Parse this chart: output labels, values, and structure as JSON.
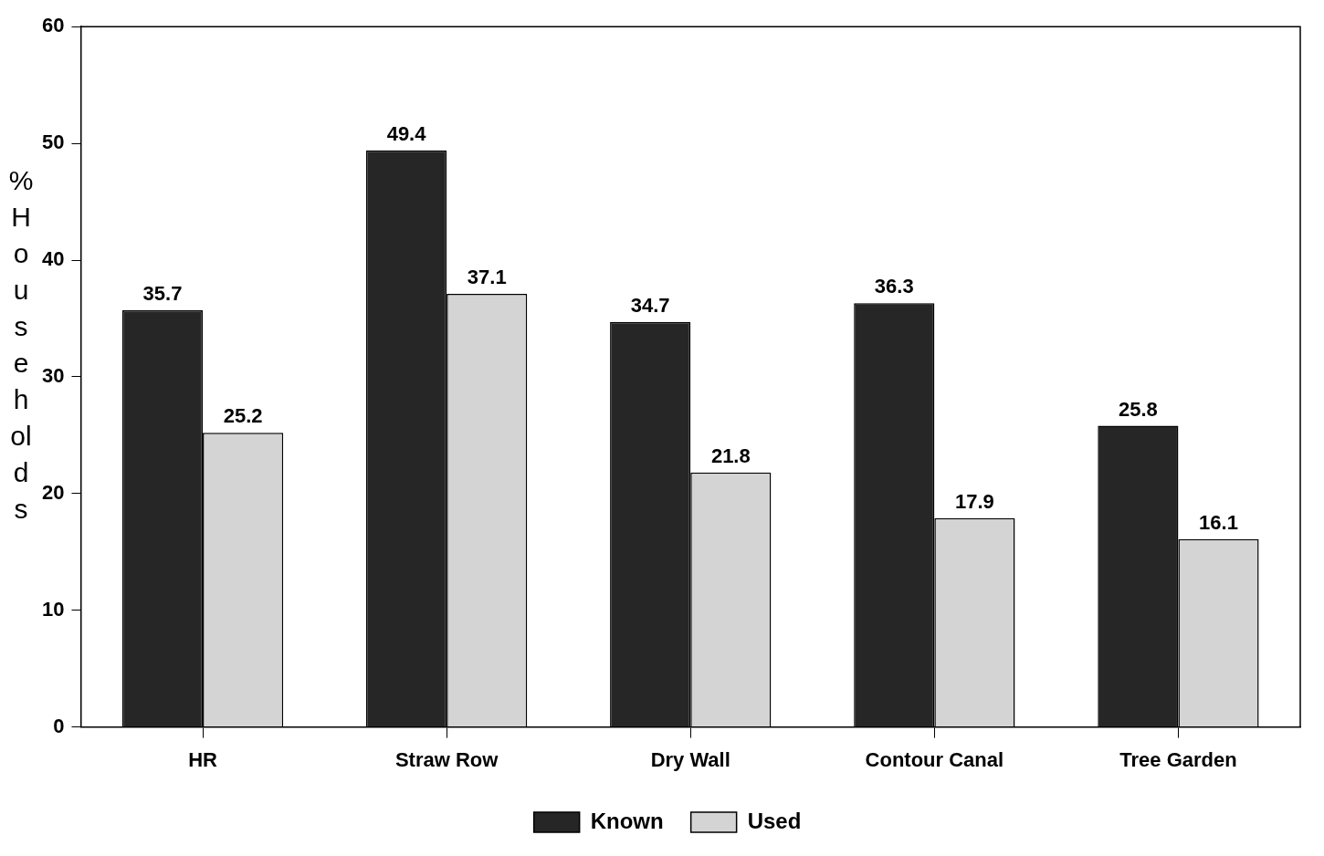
{
  "chart_data": {
    "type": "bar",
    "ylabel": "% Households",
    "categories": [
      "HR",
      "Straw Row",
      "Dry Wall",
      "Contour Canal",
      "Tree Garden"
    ],
    "series": [
      {
        "name": "Known",
        "color": "#262626",
        "values": [
          35.7,
          49.4,
          34.7,
          36.3,
          25.8
        ]
      },
      {
        "name": "Used",
        "color": "#d4d4d4",
        "values": [
          25.2,
          37.1,
          21.8,
          17.9,
          16.1
        ]
      }
    ],
    "ylim": [
      0,
      60
    ],
    "yticks": [
      0,
      10,
      20,
      30,
      40,
      50,
      60
    ],
    "grid": false,
    "legend": "bottom",
    "data_labels": true
  }
}
